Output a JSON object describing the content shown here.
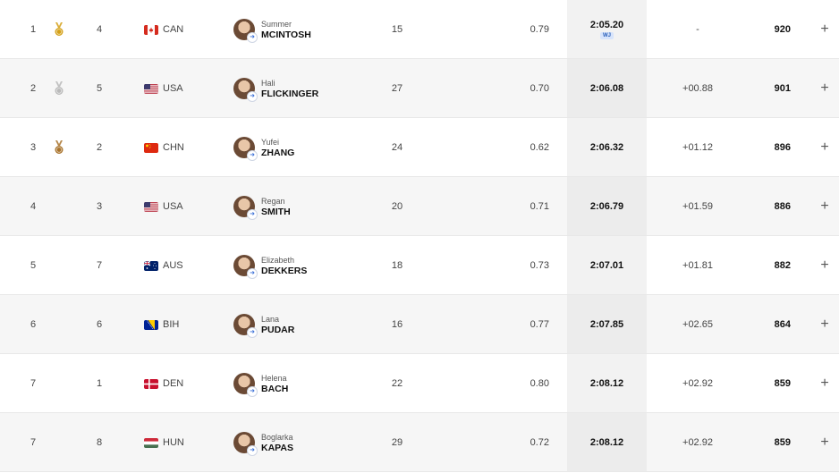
{
  "results": [
    {
      "rank": "1",
      "medal": "gold",
      "lane": "4",
      "country": "CAN",
      "first": "Summer",
      "last": "MCINTOSH",
      "age": "15",
      "reaction": "0.79",
      "time": "2:05.20",
      "record": "WJ",
      "diff": "-",
      "points": "920"
    },
    {
      "rank": "2",
      "medal": "silver",
      "lane": "5",
      "country": "USA",
      "first": "Hali",
      "last": "FLICKINGER",
      "age": "27",
      "reaction": "0.70",
      "time": "2:06.08",
      "record": "",
      "diff": "+00.88",
      "points": "901"
    },
    {
      "rank": "3",
      "medal": "bronze",
      "lane": "2",
      "country": "CHN",
      "first": "Yufei",
      "last": "ZHANG",
      "age": "24",
      "reaction": "0.62",
      "time": "2:06.32",
      "record": "",
      "diff": "+01.12",
      "points": "896"
    },
    {
      "rank": "4",
      "medal": "",
      "lane": "3",
      "country": "USA",
      "first": "Regan",
      "last": "SMITH",
      "age": "20",
      "reaction": "0.71",
      "time": "2:06.79",
      "record": "",
      "diff": "+01.59",
      "points": "886"
    },
    {
      "rank": "5",
      "medal": "",
      "lane": "7",
      "country": "AUS",
      "first": "Elizabeth",
      "last": "DEKKERS",
      "age": "18",
      "reaction": "0.73",
      "time": "2:07.01",
      "record": "",
      "diff": "+01.81",
      "points": "882"
    },
    {
      "rank": "6",
      "medal": "",
      "lane": "6",
      "country": "BIH",
      "first": "Lana",
      "last": "PUDAR",
      "age": "16",
      "reaction": "0.77",
      "time": "2:07.85",
      "record": "",
      "diff": "+02.65",
      "points": "864"
    },
    {
      "rank": "7",
      "medal": "",
      "lane": "1",
      "country": "DEN",
      "first": "Helena",
      "last": "BACH",
      "age": "22",
      "reaction": "0.80",
      "time": "2:08.12",
      "record": "",
      "diff": "+02.92",
      "points": "859"
    },
    {
      "rank": "7",
      "medal": "",
      "lane": "8",
      "country": "HUN",
      "first": "Boglarka",
      "last": "KAPAS",
      "age": "29",
      "reaction": "0.72",
      "time": "2:08.12",
      "record": "",
      "diff": "+02.92",
      "points": "859"
    }
  ],
  "expand_icon": "plus-icon",
  "medal_colors": {
    "gold": "#d4a017",
    "silver": "#b9b9b9",
    "bronze": "#a8722a"
  }
}
